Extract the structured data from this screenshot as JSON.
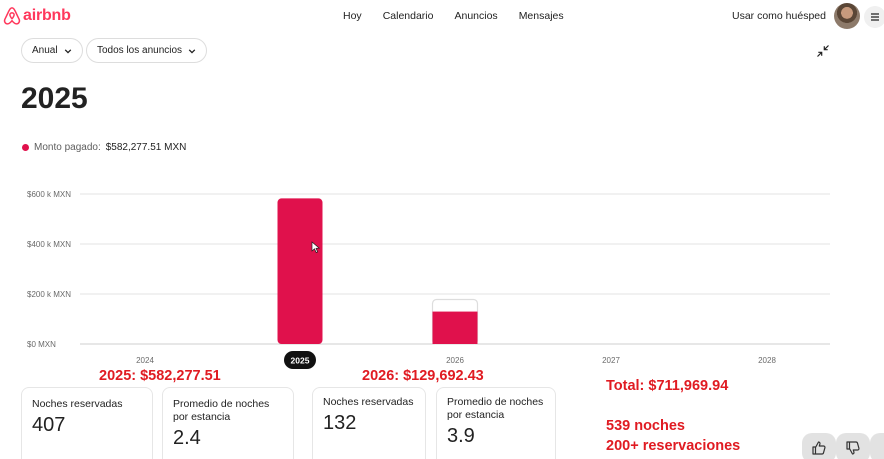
{
  "header": {
    "brand": "airbnb",
    "nav": [
      "Hoy",
      "Calendario",
      "Anuncios",
      "Mensajes"
    ],
    "host_link": "Usar como huésped"
  },
  "filters": {
    "period": "Anual",
    "listings": "Todos los anuncios"
  },
  "page_title": "2025",
  "legend": {
    "label": "Monto pagado:",
    "value": "$582,277.51 MXN",
    "color": "#e0114c"
  },
  "chart_data": {
    "type": "bar",
    "categories": [
      "2024",
      "2025",
      "2026",
      "2027",
      "2028"
    ],
    "selected_category": "2025",
    "series": [
      {
        "name": "Monto pagado",
        "values": [
          0,
          582277.51,
          129692.43,
          0,
          0
        ],
        "color": "#e0114c"
      },
      {
        "name": "",
        "values": [
          0,
          0,
          178000,
          0,
          0
        ],
        "color": "#ffffff",
        "outline": "#dddddd",
        "style": "outlined"
      }
    ],
    "y_ticks": [
      {
        "value": 0,
        "label": "$0 MXN"
      },
      {
        "value": 200000,
        "label": "$200 k MXN"
      },
      {
        "value": 400000,
        "label": "$400 k MXN"
      },
      {
        "value": 600000,
        "label": "$600 k MXN"
      }
    ],
    "ylim": [
      0,
      600000
    ],
    "grid": true
  },
  "annotations": {
    "y2025": "2025:  $582,277.51",
    "y2026": "2026:  $129,692.43",
    "total": "Total: $711,969.94",
    "nights": "539 noches",
    "reservations": "200+ reservaciones",
    "color": "#e01b22"
  },
  "stats_2025": {
    "nights_label": "Noches reservadas",
    "nights_value": "407",
    "avg_label": "Promedio de noches por estancia",
    "avg_value": "2.4"
  },
  "stats_2026": {
    "nights_label": "Noches reservadas",
    "nights_value": "132",
    "avg_label": "Promedio de noches por estancia",
    "avg_value": "3.9"
  },
  "icons": {
    "logo": "airbnb-logo-icon",
    "menu": "hamburger-menu-icon",
    "collapse": "collapse-arrows-icon",
    "chevron": "chevron-down-icon",
    "thumbs_up": "thumbs-up-icon",
    "thumbs_down": "thumbs-down-icon",
    "cursor": "mouse-pointer-icon"
  }
}
